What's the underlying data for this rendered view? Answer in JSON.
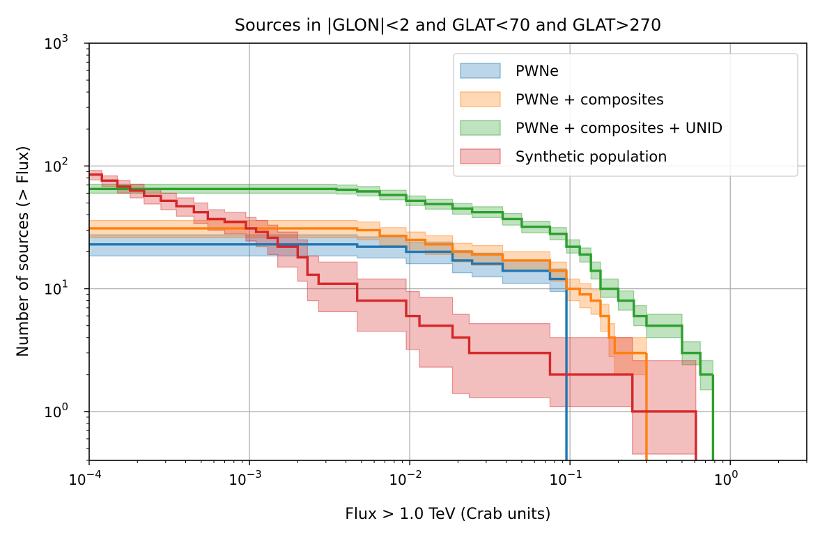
{
  "chart_data": {
    "type": "line",
    "step": "post",
    "title": "Sources in |GLON|<2 and GLAT<70 and GLAT>270",
    "xlabel": "Flux > 1.0 TeV (Crab units)",
    "ylabel": "Number of sources (> Flux)",
    "xscale": "log",
    "yscale": "log",
    "xlim": [
      0.0001,
      3.0
    ],
    "ylim": [
      0.4,
      1000
    ],
    "grid": true,
    "legend_position": "top-right",
    "x_ticks": [
      {
        "value": 0.0001,
        "base": "10",
        "exp": "−4"
      },
      {
        "value": 0.001,
        "base": "10",
        "exp": "−3"
      },
      {
        "value": 0.01,
        "base": "10",
        "exp": "−2"
      },
      {
        "value": 0.1,
        "base": "10",
        "exp": "−1"
      },
      {
        "value": 1,
        "base": "10",
        "exp": "0"
      }
    ],
    "y_ticks": [
      {
        "value": 1,
        "base": "10",
        "exp": "0"
      },
      {
        "value": 10,
        "base": "10",
        "exp": "1"
      },
      {
        "value": 100,
        "base": "10",
        "exp": "2"
      },
      {
        "value": 1000,
        "base": "10",
        "exp": "3"
      }
    ],
    "series": [
      {
        "name": "PWNe",
        "color": "#1f77b4",
        "x": [
          0.0001,
          0.0047,
          0.0095,
          0.0185,
          0.0245,
          0.038,
          0.075,
          0.095
        ],
        "y": [
          23,
          22,
          20,
          17,
          16,
          14,
          12,
          11
        ],
        "band_low": [
          18.5,
          17.8,
          16,
          13.5,
          12.5,
          11,
          9.5,
          8.8
        ],
        "band_high": [
          27.5,
          26.5,
          24,
          20.5,
          19.5,
          17,
          14.5,
          13.2
        ]
      },
      {
        "name": "PWNe + composites",
        "color": "#ff7f0e",
        "x": [
          0.0001,
          0.0047,
          0.0065,
          0.0095,
          0.0125,
          0.0185,
          0.0245,
          0.038,
          0.075,
          0.095,
          0.115,
          0.135,
          0.155,
          0.175,
          0.19,
          0.3
        ],
        "y": [
          31,
          30,
          27,
          25,
          23,
          20,
          19,
          17,
          14,
          10,
          9,
          8,
          6,
          4,
          3,
          3
        ],
        "band_low": [
          26,
          25,
          22.5,
          21,
          19,
          16.5,
          15.5,
          14,
          11.5,
          8,
          7,
          6.2,
          4.5,
          2.8,
          2,
          2
        ],
        "band_high": [
          36,
          35,
          31.5,
          29,
          27,
          23.5,
          22.5,
          20,
          16.5,
          12,
          11,
          9.8,
          7.5,
          5.2,
          4,
          4
        ]
      },
      {
        "name": "PWNe + composites + UNID",
        "color": "#2ca02c",
        "x": [
          0.0001,
          0.0035,
          0.0047,
          0.0065,
          0.0095,
          0.0125,
          0.0185,
          0.0245,
          0.038,
          0.05,
          0.075,
          0.095,
          0.115,
          0.135,
          0.155,
          0.2,
          0.25,
          0.3,
          0.5,
          0.65,
          0.78
        ],
        "y": [
          65,
          64,
          62,
          58,
          52,
          49,
          45,
          42,
          37,
          32,
          28,
          22,
          19,
          14,
          10,
          8,
          6,
          5,
          3,
          2,
          2
        ],
        "band_low": [
          60,
          59,
          57,
          53,
          47.5,
          44.5,
          40.5,
          38,
          33,
          28.5,
          25,
          19.5,
          16.5,
          12,
          8.5,
          6.7,
          5,
          4,
          2.4,
          1.5,
          1.5
        ],
        "band_high": [
          71,
          70,
          68,
          63.5,
          57,
          53.5,
          49.5,
          46.5,
          41,
          35.5,
          31.5,
          25,
          21.5,
          16.5,
          12,
          9.6,
          7.3,
          6.2,
          3.7,
          2.6,
          2.6
        ]
      },
      {
        "name": "Synthetic population",
        "color": "#d62728",
        "x": [
          0.0001,
          0.00012,
          0.00015,
          0.00018,
          0.00022,
          0.00028,
          0.00035,
          0.00045,
          0.00055,
          0.0007,
          0.00095,
          0.0011,
          0.0013,
          0.0015,
          0.002,
          0.0023,
          0.0027,
          0.0047,
          0.0095,
          0.0115,
          0.0145,
          0.0185,
          0.0235,
          0.075,
          0.245,
          0.61
        ],
        "y": [
          85,
          76,
          68,
          63,
          57,
          52,
          47,
          42,
          37,
          35,
          31,
          29,
          26,
          22,
          18,
          13,
          11,
          8,
          6,
          5,
          5,
          4,
          3,
          2,
          1,
          0.95
        ],
        "band_low": [
          77,
          68,
          60,
          55,
          49,
          44,
          39,
          34,
          30,
          28,
          24.5,
          22,
          19,
          15,
          11.5,
          8,
          6.5,
          4.5,
          3.2,
          2.3,
          2.3,
          1.4,
          1.3,
          1.1,
          0.45,
          0.3
        ],
        "band_high": [
          92,
          83,
          76,
          71,
          65,
          60,
          55,
          50,
          44,
          42,
          38,
          36,
          33,
          29,
          25,
          18.5,
          16.5,
          12,
          9.5,
          8.5,
          8.5,
          6.2,
          5.2,
          4.0,
          2.6,
          1.0
        ]
      }
    ]
  }
}
